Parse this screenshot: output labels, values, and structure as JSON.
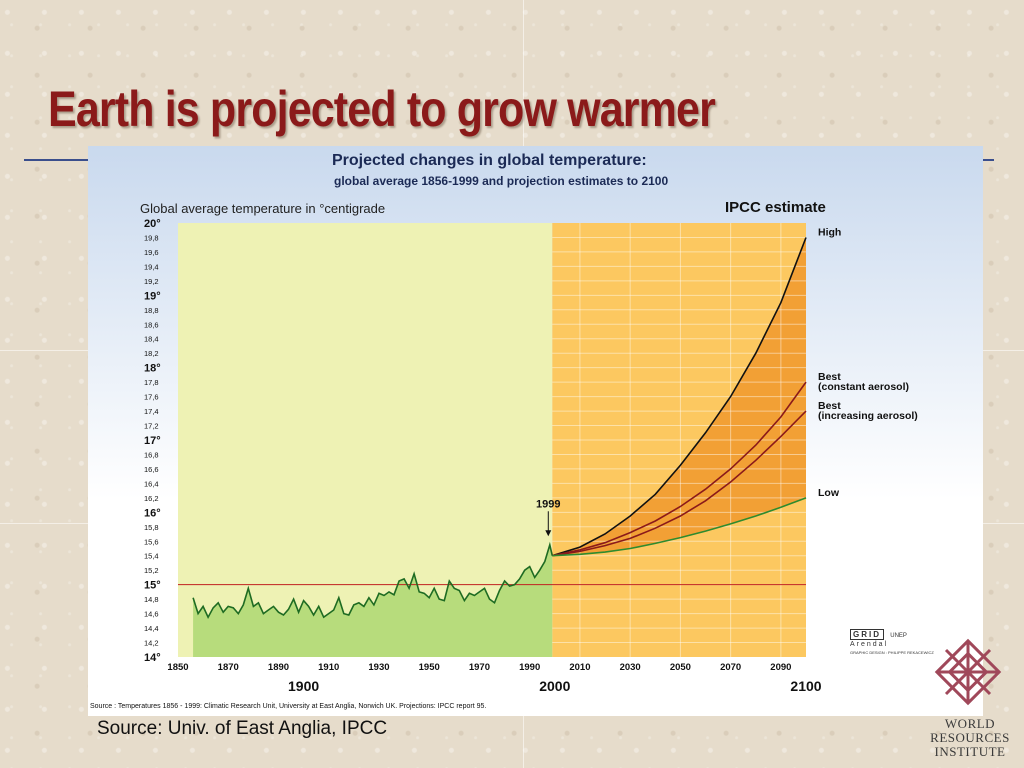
{
  "slide": {
    "title": "Earth is projected to grow warmer",
    "source_caption": "Source: Univ. of East Anglia, IPCC",
    "org_lines": [
      "WORLD",
      "RESOURCES",
      "INSTITUTE"
    ]
  },
  "chart_data": {
    "type": "line",
    "title": "Projected changes in global temperature:",
    "subtitle": "global average 1856-1999 and projection estimates to 2100",
    "ylabel": "Global average temperature in °centigrade",
    "legend_title": "IPCC estimate",
    "source_note": "Source : Temperatures 1856 - 1999: Climatic Research Unit, University at East Anglia, Norwich UK. Projections: IPCC report 95.",
    "xlim": [
      1850,
      2100
    ],
    "ylim": [
      14,
      20
    ],
    "x_ticks": [
      "1850",
      "1870",
      "1890",
      "1910",
      "1930",
      "1950",
      "1970",
      "1990",
      "2010",
      "2030",
      "2050",
      "2070",
      "2090"
    ],
    "x_tick_values": [
      1850,
      1870,
      1890,
      1910,
      1930,
      1950,
      1970,
      1990,
      2010,
      2030,
      2050,
      2070,
      2090
    ],
    "x_major_ticks": [
      "1900",
      "2000",
      "2100"
    ],
    "x_major_values": [
      1900,
      2000,
      2100
    ],
    "y_ticks": [
      "14°",
      "14,2",
      "14,4",
      "14,6",
      "14,8",
      "15°",
      "15,2",
      "15,4",
      "15,6",
      "15,8",
      "16°",
      "16,2",
      "16,4",
      "16,6",
      "16,8",
      "17°",
      "17,2",
      "17,4",
      "17,6",
      "17,8",
      "18°",
      "18,2",
      "18,4",
      "18,6",
      "18,8",
      "19°",
      "19,2",
      "19,4",
      "19,6",
      "19,8",
      "20°"
    ],
    "y_tick_values": [
      14,
      14.2,
      14.4,
      14.6,
      14.8,
      15,
      15.2,
      15.4,
      15.6,
      15.8,
      16,
      16.2,
      16.4,
      16.6,
      16.8,
      17,
      17.2,
      17.4,
      17.6,
      17.8,
      18,
      18.2,
      18.4,
      18.6,
      18.8,
      19,
      19.2,
      19.4,
      19.6,
      19.8,
      20
    ],
    "reference_line": 15,
    "annotation": {
      "label": "1999",
      "x": 1999,
      "y": 15.6
    },
    "historical": {
      "x": [
        1856,
        1858,
        1860,
        1862,
        1864,
        1866,
        1868,
        1870,
        1872,
        1874,
        1876,
        1878,
        1880,
        1882,
        1884,
        1886,
        1888,
        1890,
        1892,
        1894,
        1896,
        1898,
        1900,
        1902,
        1904,
        1906,
        1908,
        1910,
        1912,
        1914,
        1916,
        1918,
        1920,
        1922,
        1924,
        1926,
        1928,
        1930,
        1932,
        1934,
        1936,
        1938,
        1940,
        1942,
        1944,
        1946,
        1948,
        1950,
        1952,
        1954,
        1956,
        1958,
        1960,
        1962,
        1964,
        1966,
        1968,
        1970,
        1972,
        1974,
        1976,
        1978,
        1980,
        1982,
        1984,
        1986,
        1988,
        1990,
        1992,
        1994,
        1996,
        1998,
        1999
      ],
      "y": [
        14.82,
        14.6,
        14.7,
        14.55,
        14.68,
        14.75,
        14.62,
        14.7,
        14.68,
        14.6,
        14.72,
        14.95,
        14.7,
        14.75,
        14.6,
        14.65,
        14.7,
        14.62,
        14.58,
        14.66,
        14.8,
        14.62,
        14.78,
        14.7,
        14.58,
        14.7,
        14.55,
        14.6,
        14.65,
        14.82,
        14.6,
        14.58,
        14.72,
        14.75,
        14.7,
        14.82,
        14.72,
        14.88,
        14.85,
        14.9,
        14.86,
        15.05,
        15.08,
        14.95,
        15.15,
        14.9,
        14.88,
        14.82,
        14.95,
        14.8,
        14.78,
        15.05,
        14.95,
        14.92,
        14.78,
        14.88,
        14.85,
        14.9,
        14.95,
        14.8,
        14.75,
        14.92,
        15.05,
        14.98,
        15.0,
        15.08,
        15.2,
        15.25,
        15.1,
        15.2,
        15.32,
        15.55,
        15.4
      ]
    },
    "series": [
      {
        "name": "High",
        "x": [
          1999,
          2010,
          2020,
          2030,
          2040,
          2050,
          2060,
          2070,
          2080,
          2090,
          2100
        ],
        "y": [
          15.4,
          15.52,
          15.7,
          15.95,
          16.25,
          16.65,
          17.1,
          17.6,
          18.2,
          18.9,
          19.8
        ],
        "color": "#111111"
      },
      {
        "name": "Best (constant aerosol)",
        "x": [
          1999,
          2010,
          2020,
          2030,
          2040,
          2050,
          2060,
          2070,
          2080,
          2090,
          2100
        ],
        "y": [
          15.4,
          15.48,
          15.58,
          15.72,
          15.88,
          16.08,
          16.32,
          16.6,
          16.93,
          17.32,
          17.8
        ],
        "color": "#8b1a1a"
      },
      {
        "name": "Best (increasing aerosol)",
        "x": [
          1999,
          2010,
          2020,
          2030,
          2040,
          2050,
          2060,
          2070,
          2080,
          2090,
          2100
        ],
        "y": [
          15.4,
          15.46,
          15.54,
          15.64,
          15.78,
          15.95,
          16.16,
          16.42,
          16.72,
          17.05,
          17.4
        ],
        "color": "#8b1a1a"
      },
      {
        "name": "Low",
        "x": [
          1999,
          2010,
          2020,
          2030,
          2040,
          2050,
          2060,
          2070,
          2080,
          2090,
          2100
        ],
        "y": [
          15.4,
          15.42,
          15.45,
          15.5,
          15.57,
          15.65,
          15.74,
          15.84,
          15.95,
          16.07,
          16.2
        ],
        "color": "#2e8b2e"
      }
    ],
    "series_labels": [
      {
        "lines": [
          "High"
        ],
        "y": 19.8
      },
      {
        "lines": [
          "Best",
          "(constant aerosol)"
        ],
        "y": 17.8
      },
      {
        "lines": [
          "Best",
          "(increasing aerosol)"
        ],
        "y": 17.4
      },
      {
        "lines": [
          "Low"
        ],
        "y": 16.2
      }
    ],
    "colors": {
      "past_background": "#eef2b4",
      "past_fill": "#b7dc7c",
      "future_background": "#fcc860",
      "future_band": "#f2a035",
      "historical_line": "#1e6b22",
      "reference_line": "#c02020"
    }
  },
  "logos": {
    "grid_word": "GRID",
    "grid_place": "Arendal",
    "unep": "UNEP",
    "design_credit": "GRAPHIC DESIGN : PHILIPPE REKACEWICZ"
  }
}
